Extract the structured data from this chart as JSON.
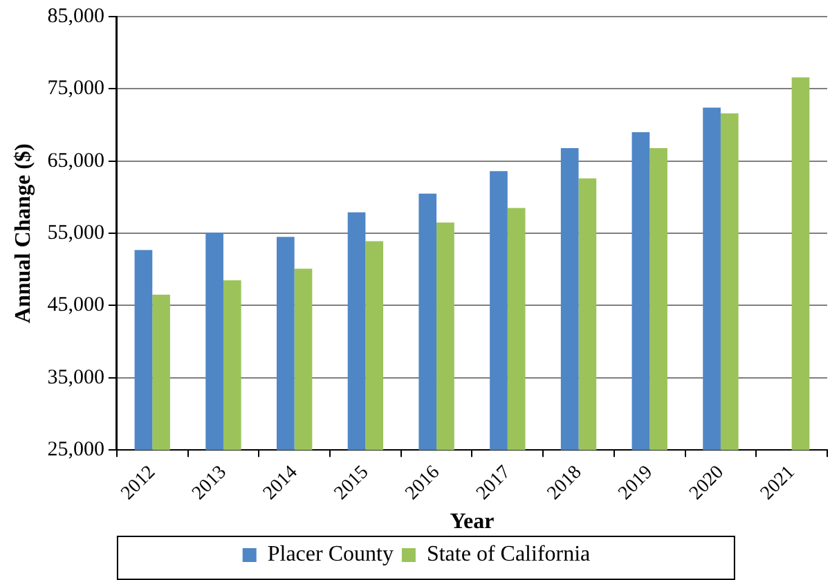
{
  "chart_data": {
    "type": "bar",
    "xlabel": "Year",
    "ylabel": "Annual Change ($)",
    "categories": [
      "2012",
      "2013",
      "2014",
      "2015",
      "2016",
      "2017",
      "2018",
      "2019",
      "2020",
      "2021"
    ],
    "series": [
      {
        "name": "Placer County",
        "color": "#4f86c6",
        "values": [
          52700,
          55100,
          54500,
          57900,
          60500,
          63600,
          66800,
          69000,
          72400,
          null
        ]
      },
      {
        "name": "State of California",
        "color": "#9bc35a",
        "values": [
          46500,
          48500,
          50100,
          53900,
          56500,
          58500,
          62600,
          66800,
          71600,
          76600
        ]
      }
    ],
    "ylim": [
      25000,
      85000
    ],
    "yticks": [
      {
        "value": 25000,
        "label": "25,000"
      },
      {
        "value": 35000,
        "label": "35,000"
      },
      {
        "value": 45000,
        "label": "45,000"
      },
      {
        "value": 55000,
        "label": "55,000"
      },
      {
        "value": 65000,
        "label": "65,000"
      },
      {
        "value": 75000,
        "label": "75,000"
      },
      {
        "value": 85000,
        "label": "85,000"
      }
    ],
    "grid": "y",
    "legend": "bottom"
  }
}
